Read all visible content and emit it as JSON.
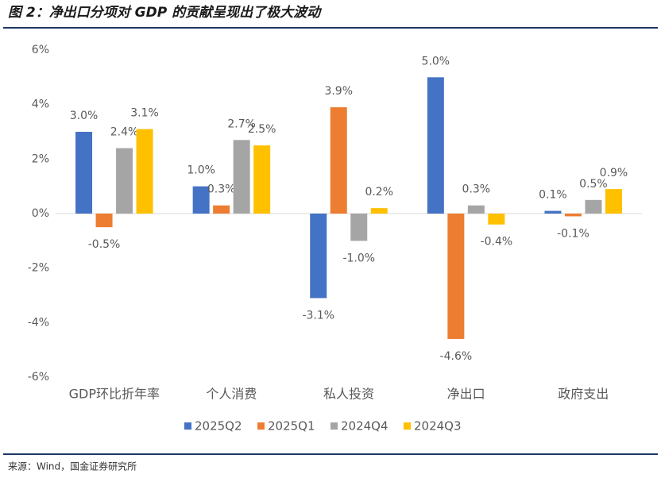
{
  "chart_data": {
    "type": "bar",
    "title": "图 2：净出口分项对 GDP 的贡献呈现出了极大波动",
    "source": "来源：Wind，国金证券研究所",
    "categories": [
      "GDP环比折年率",
      "个人消费",
      "私人投资",
      "净出口",
      "政府支出"
    ],
    "series": [
      {
        "name": "2025Q2",
        "color": "#4472c4",
        "values": [
          3.0,
          1.0,
          -3.1,
          5.0,
          0.1
        ],
        "value_labels": [
          "3.0%",
          "1.0%",
          "-3.1%",
          "5.0%",
          "0.1%"
        ]
      },
      {
        "name": "2025Q1",
        "color": "#ed7d31",
        "values": [
          -0.5,
          0.3,
          3.9,
          -4.6,
          -0.1
        ],
        "value_labels": [
          "-0.5%",
          "0.3%",
          "3.9%",
          "-4.6%",
          "-0.1%"
        ]
      },
      {
        "name": "2024Q4",
        "color": "#a5a5a5",
        "values": [
          2.4,
          2.7,
          -1.0,
          0.3,
          0.5
        ],
        "value_labels": [
          "2.4%",
          "2.7%",
          "-1.0%",
          "0.3%",
          "0.5%"
        ]
      },
      {
        "name": "2024Q3",
        "color": "#ffc000",
        "values": [
          3.1,
          2.5,
          0.2,
          -0.4,
          0.9
        ],
        "value_labels": [
          "3.1%",
          "2.5%",
          "0.2%",
          "-0.4%",
          "0.9%"
        ]
      }
    ],
    "ylim": [
      -6,
      6
    ],
    "yticks": [
      {
        "value": -6,
        "label": "-6%"
      },
      {
        "value": -4,
        "label": "-4%"
      },
      {
        "value": -2,
        "label": "-2%"
      },
      {
        "value": 0,
        "label": "0%"
      },
      {
        "value": 2,
        "label": "2%"
      },
      {
        "value": 4,
        "label": "4%"
      },
      {
        "value": 6,
        "label": "6%"
      }
    ],
    "grid": false,
    "legend": "bottom"
  }
}
